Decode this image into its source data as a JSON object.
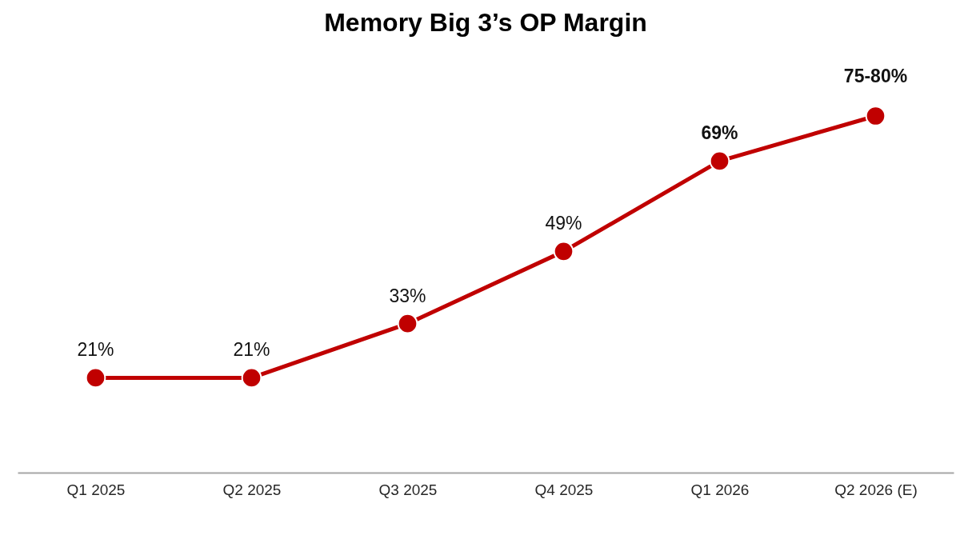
{
  "chart_data": {
    "type": "line",
    "title": "Memory Big 3’s OP Margin",
    "categories": [
      "Q1 2025",
      "Q2 2025",
      "Q3 2025",
      "Q4 2025",
      "Q1 2026",
      "Q2 2026 (E)"
    ],
    "series": [
      {
        "color": "#c00000",
        "values": [
          21,
          21,
          33,
          49,
          69,
          79
        ],
        "value_labels": [
          "21%",
          "21%",
          "33%",
          "49%",
          "69%",
          null
        ]
      }
    ],
    "annotations": [
      {
        "text": "75-80%",
        "x": "Q2 2026 (E)",
        "y": 79
      }
    ],
    "tick_labels": "x",
    "marker": "circle",
    "line_style": "solid"
  }
}
